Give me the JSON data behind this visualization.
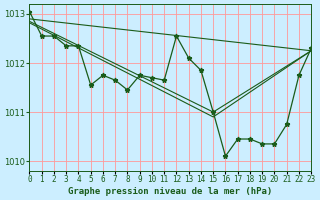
{
  "title": "Graphe pression niveau de la mer (hPa)",
  "background_color": "#cceeff",
  "plot_bg_color": "#cceeff",
  "line_color": "#1a5c1a",
  "grid_color": "#ff9999",
  "xlim": [
    0,
    23
  ],
  "ylim": [
    1009.8,
    1013.2
  ],
  "yticks": [
    1010,
    1011,
    1012,
    1013
  ],
  "xtick_labels": [
    "0",
    "1",
    "2",
    "3",
    "4",
    "5",
    "6",
    "7",
    "8",
    "9",
    "10",
    "11",
    "12",
    "13",
    "14",
    "15",
    "16",
    "17",
    "18",
    "19",
    "20",
    "21",
    "22",
    "23"
  ],
  "main_series": [
    [
      0,
      1013.05
    ],
    [
      1,
      1012.55
    ],
    [
      2,
      1012.55
    ],
    [
      3,
      1012.35
    ],
    [
      4,
      1012.35
    ],
    [
      5,
      1011.55
    ],
    [
      6,
      1011.75
    ],
    [
      7,
      1011.65
    ],
    [
      8,
      1011.45
    ],
    [
      9,
      1011.75
    ],
    [
      10,
      1011.7
    ],
    [
      11,
      1011.65
    ],
    [
      12,
      1012.55
    ],
    [
      13,
      1012.1
    ],
    [
      14,
      1011.85
    ],
    [
      15,
      1011.0
    ],
    [
      16,
      1010.1
    ],
    [
      17,
      1010.45
    ],
    [
      18,
      1010.45
    ],
    [
      19,
      1010.35
    ],
    [
      20,
      1010.35
    ],
    [
      21,
      1010.75
    ],
    [
      22,
      1011.75
    ],
    [
      23,
      1012.3
    ]
  ],
  "trend_line": [
    [
      0,
      1012.9
    ],
    [
      23,
      1012.25
    ]
  ],
  "trend_line2": [
    [
      0,
      1012.85
    ],
    [
      15,
      1011.0
    ],
    [
      23,
      1012.25
    ]
  ],
  "trend_line3": [
    [
      0,
      1012.82
    ],
    [
      15,
      1010.9
    ],
    [
      23,
      1012.25
    ]
  ]
}
